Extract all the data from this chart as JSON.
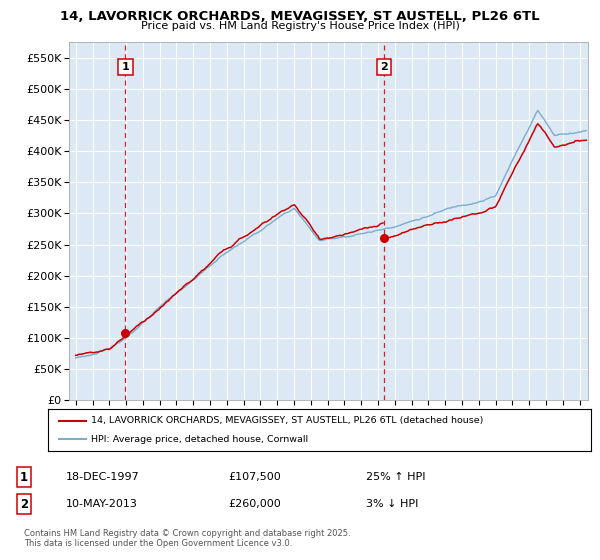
{
  "title": "14, LAVORRICK ORCHARDS, MEVAGISSEY, ST AUSTELL, PL26 6TL",
  "subtitle": "Price paid vs. HM Land Registry's House Price Index (HPI)",
  "ylim": [
    0,
    575000
  ],
  "yticks": [
    0,
    50000,
    100000,
    150000,
    200000,
    250000,
    300000,
    350000,
    400000,
    450000,
    500000,
    550000
  ],
  "ytick_labels": [
    "£0",
    "£50K",
    "£100K",
    "£150K",
    "£200K",
    "£250K",
    "£300K",
    "£350K",
    "£400K",
    "£450K",
    "£500K",
    "£550K"
  ],
  "sale1_date": 1997.96,
  "sale1_price": 107500,
  "sale1_label": "1",
  "sale2_date": 2013.37,
  "sale2_price": 260000,
  "sale2_label": "2",
  "red_line_color": "#cc0000",
  "blue_line_color": "#7aadce",
  "dashed_color": "#cc0000",
  "background_color": "#ffffff",
  "plot_bg_color": "#dce9f5",
  "grid_color": "#ffffff",
  "legend_label_red": "14, LAVORRICK ORCHARDS, MEVAGISSEY, ST AUSTELL, PL26 6TL (detached house)",
  "legend_label_blue": "HPI: Average price, detached house, Cornwall",
  "annotation1_date": "18-DEC-1997",
  "annotation1_price": "£107,500",
  "annotation1_hpi": "25% ↑ HPI",
  "annotation2_date": "10-MAY-2013",
  "annotation2_price": "£260,000",
  "annotation2_hpi": "3% ↓ HPI",
  "footer": "Contains HM Land Registry data © Crown copyright and database right 2025.\nThis data is licensed under the Open Government Licence v3.0.",
  "xlim_start": 1994.6,
  "xlim_end": 2025.5
}
